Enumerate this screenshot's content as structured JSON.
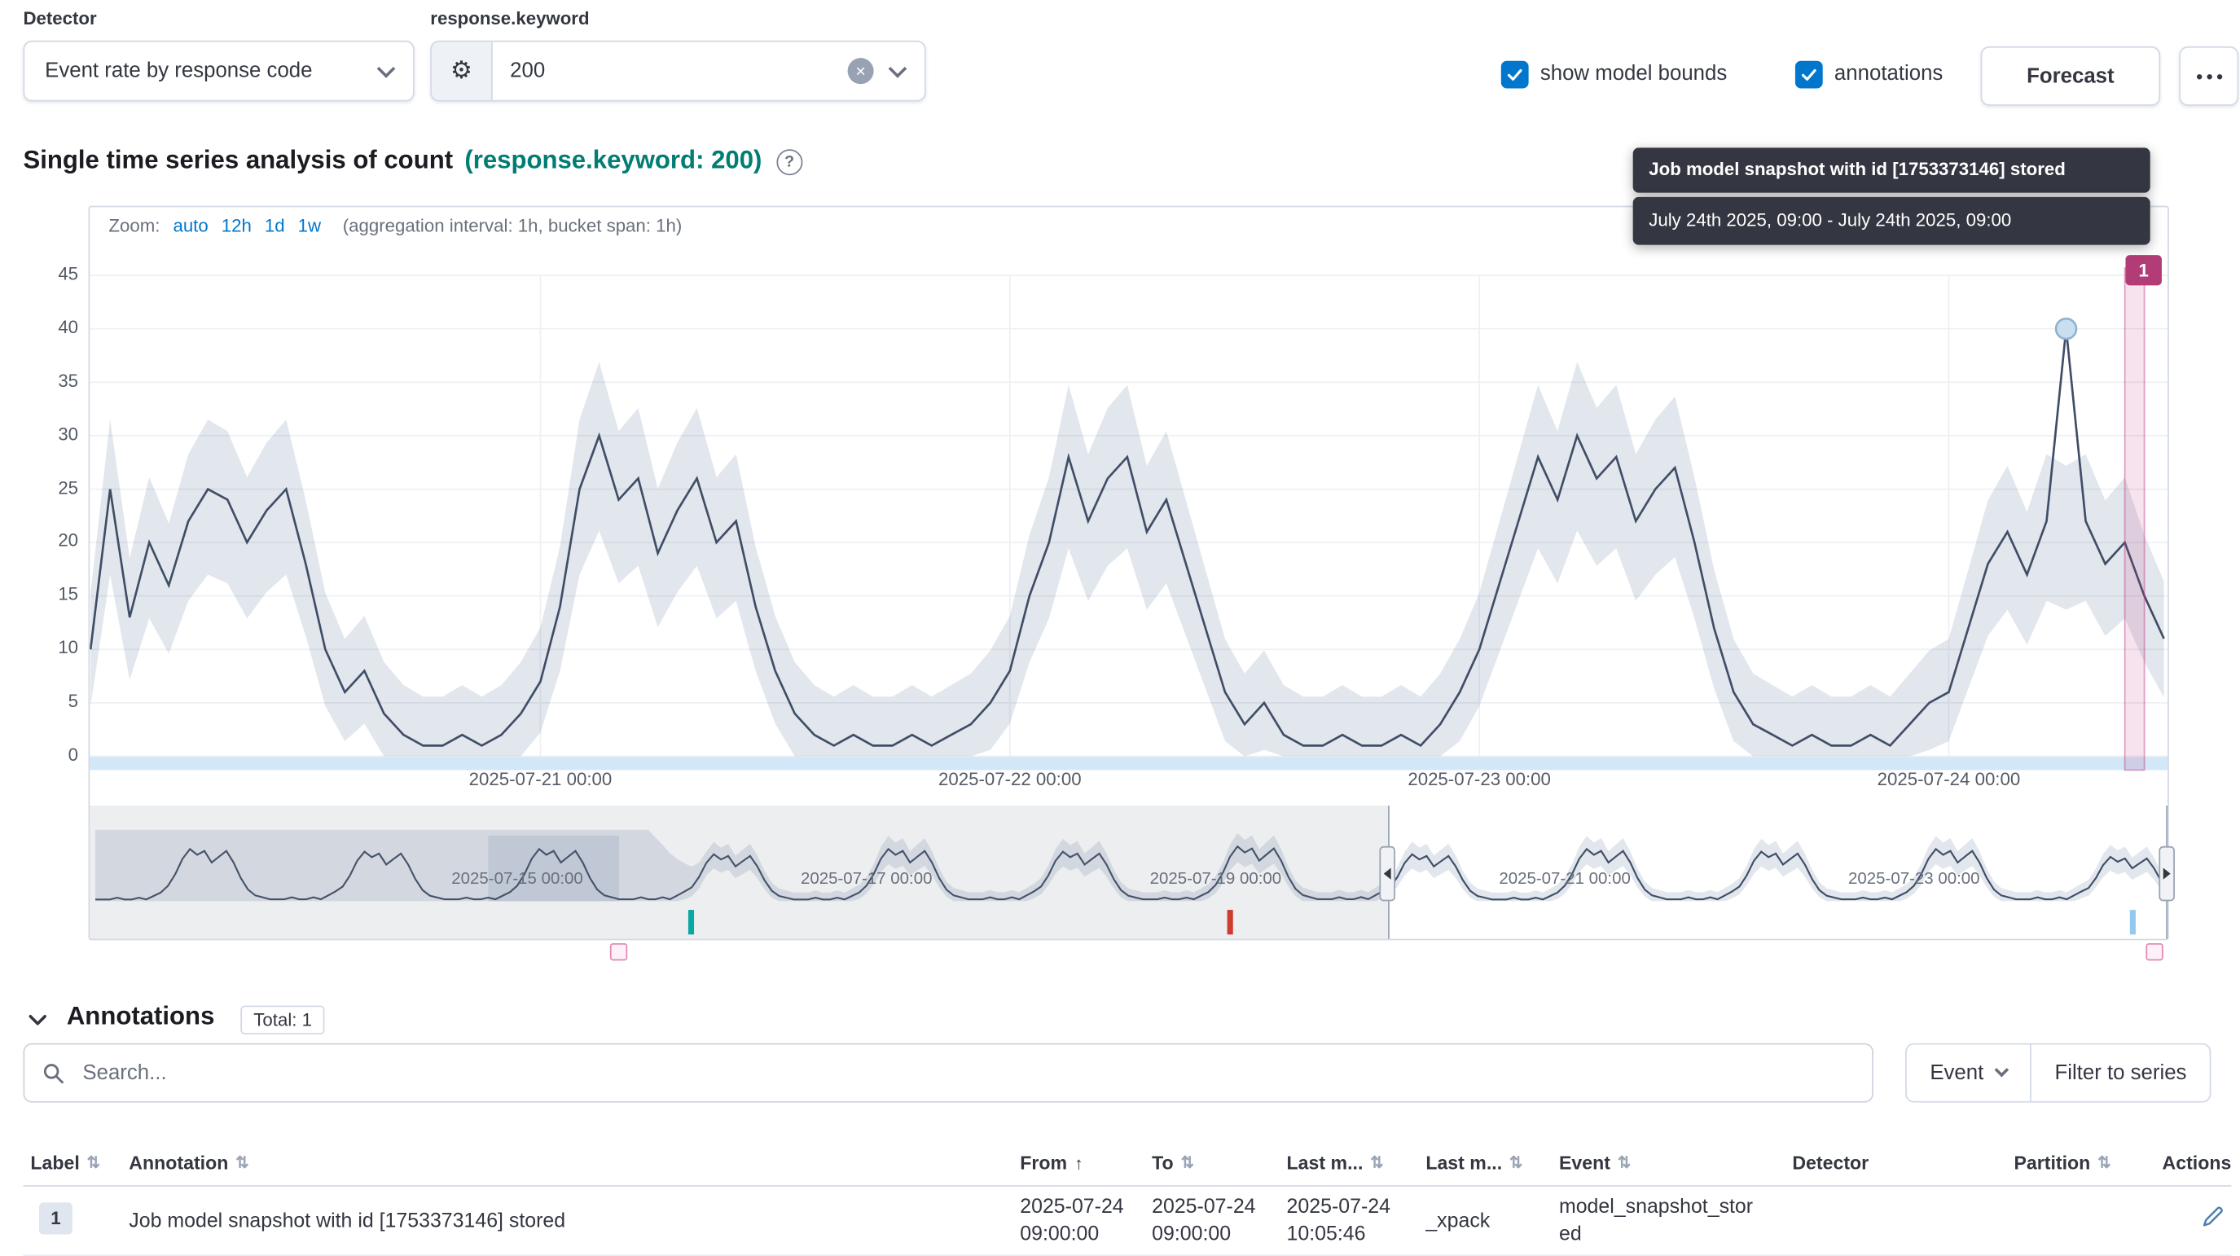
{
  "colors": {
    "link": "#0077cc",
    "accent_teal": "#017d73",
    "annotation_pink": "#b23d76",
    "line": "#3f4e66",
    "band": "rgba(93,115,155,0.18)",
    "axis_strip": "#d2e7f8",
    "marker_teal": "#0aa8a2",
    "marker_red": "#cf3b2c",
    "marker_blue": "#92c9ee"
  },
  "icons": {
    "gear": "⚙",
    "clear": "×",
    "help": "?",
    "sort_both": "⇅",
    "sort_asc": "↑"
  },
  "controls": {
    "detector_label": "Detector",
    "detector_value": "Event rate by response code",
    "field_label": "response.keyword",
    "field_value": "200",
    "show_model_bounds": "show model bounds",
    "annotations": "annotations",
    "forecast": "Forecast"
  },
  "title": {
    "main": "Single time series analysis of count",
    "highlight": "(response.keyword: 200)"
  },
  "tooltip": {
    "title": "Job model snapshot with id [1753373146] stored",
    "body": "July 24th 2025, 09:00 - July 24th 2025, 09:00"
  },
  "zoom": {
    "label": "Zoom:",
    "options": [
      "auto",
      "12h",
      "1d",
      "1w"
    ],
    "suffix": "(aggregation interval: 1h, bucket span: 1h)"
  },
  "chart_data": {
    "type": "line",
    "title": "Single time series analysis of count (response.keyword: 200)",
    "focus": {
      "name": "count",
      "ylim": [
        0,
        45
      ],
      "y_ticks": [
        0,
        5,
        10,
        15,
        20,
        25,
        30,
        35,
        40,
        45
      ],
      "start_hour": 1,
      "values": [
        10,
        25,
        13,
        20,
        16,
        22,
        25,
        24,
        20,
        23,
        25,
        18,
        10,
        6,
        8,
        4,
        2,
        1,
        1,
        2,
        1,
        2,
        4,
        7,
        14,
        25,
        30,
        24,
        26,
        19,
        23,
        26,
        20,
        22,
        14,
        8,
        4,
        2,
        1,
        2,
        1,
        1,
        2,
        1,
        2,
        3,
        5,
        8,
        15,
        20,
        28,
        22,
        26,
        28,
        21,
        24,
        18,
        12,
        6,
        3,
        5,
        2,
        1,
        1,
        2,
        1,
        1,
        2,
        1,
        3,
        6,
        10,
        16,
        22,
        28,
        24,
        30,
        26,
        28,
        22,
        25,
        27,
        20,
        12,
        6,
        3,
        2,
        1,
        2,
        1,
        1,
        2,
        1,
        3,
        5,
        6,
        12,
        18,
        21,
        17,
        22,
        40,
        22,
        18,
        20,
        15,
        11
      ],
      "x_ticks": [
        {
          "hour": 24,
          "label": "2025-07-21 00:00"
        },
        {
          "hour": 48,
          "label": "2025-07-22 00:00"
        },
        {
          "hour": 72,
          "label": "2025-07-23 00:00"
        },
        {
          "hour": 96,
          "label": "2025-07-24 00:00"
        }
      ],
      "anomaly": {
        "hour": 102,
        "value": 40,
        "expected": 21
      },
      "annotation": {
        "hour": 105,
        "badge": "1"
      }
    },
    "context": {
      "t_start": -10,
      "t_end": 275,
      "daily_pattern": [
        8,
        14,
        22,
        27,
        24,
        26,
        20,
        23,
        26,
        20,
        12,
        6,
        3,
        2,
        1,
        1,
        1,
        2,
        1,
        1,
        2,
        1,
        3,
        5
      ],
      "day_scales": [
        0.9,
        1.0,
        0.95,
        1.0,
        0.9,
        1.0,
        0.95,
        1.05,
        0.9,
        1.0,
        0.95,
        1.0,
        0.85
      ],
      "day_scale_start": -1,
      "learning_until_t": 66,
      "learning_upper": 37,
      "learning_block": {
        "t0": 44,
        "t1": 62,
        "v_top": 34
      },
      "x_ticks": [
        {
          "t": 48,
          "label": "2025-07-15 00:00"
        },
        {
          "t": 96,
          "label": "2025-07-17 00:00"
        },
        {
          "t": 144,
          "label": "2025-07-19 00:00"
        },
        {
          "t": 192,
          "label": "2025-07-21 00:00"
        },
        {
          "t": 240,
          "label": "2025-07-23 00:00"
        }
      ],
      "markers": [
        {
          "t": 72,
          "color_key": "marker_teal"
        },
        {
          "t": 146,
          "color_key": "marker_red"
        },
        {
          "t": 270,
          "color_key": "marker_blue"
        }
      ],
      "annotation_squares": [
        {
          "t": 62
        },
        {
          "t": 273
        }
      ],
      "selection": {
        "start_t": 167.7,
        "end_t": 274.9
      }
    }
  },
  "annotations_panel": {
    "heading": "Annotations",
    "total_badge": "Total: 1",
    "search_placeholder": "Search...",
    "event_button": "Event",
    "filter_button": "Filter to series",
    "table": {
      "columns": [
        {
          "label": "Label",
          "sort": "both"
        },
        {
          "label": "Annotation",
          "sort": "both"
        },
        {
          "label": "From",
          "sort": "asc"
        },
        {
          "label": "To",
          "sort": "both"
        },
        {
          "label": "Last m...",
          "sort": "both"
        },
        {
          "label": "Last m...",
          "sort": "both"
        },
        {
          "label": "Event",
          "sort": "both"
        },
        {
          "label": "Detector",
          "sort": "none"
        },
        {
          "label": "Partition",
          "sort": "both"
        },
        {
          "label": "Actions",
          "sort": "none"
        }
      ],
      "row": {
        "label": "1",
        "annotation": "Job model snapshot with id [1753373146] stored",
        "from_date": "2025-07-24",
        "from_time": "09:00:00",
        "to_date": "2025-07-24",
        "to_time": "09:00:00",
        "modified_date": "2025-07-24",
        "modified_time": "10:05:46",
        "modified_by": "_xpack",
        "event": "model_snapshot_stored",
        "detector": "",
        "partition": ""
      }
    }
  }
}
